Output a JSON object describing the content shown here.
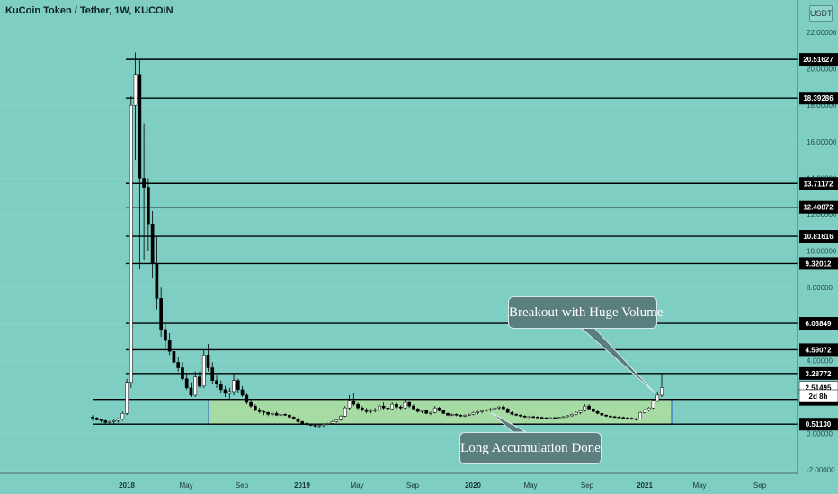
{
  "header": {
    "title": "KuCoin Token / Tether, 1W, KUCOIN",
    "currency": "USDT"
  },
  "annotations": {
    "breakout": "Breakout with Huge Volume",
    "accumulation": "Long Accumulation Done"
  },
  "chart_data": {
    "type": "candlestick",
    "title": "KuCoin Token / Tether, 1W, KUCOIN",
    "ylim": [
      -2.0,
      23.0
    ],
    "y_ticks": [
      "22.00000",
      "20.00000",
      "18.00000",
      "16.00000",
      "14.00000",
      "12.00000",
      "10.00000",
      "8.00000",
      "6.00000",
      "4.00000",
      "2.00000",
      "0.00000",
      "-2.00000"
    ],
    "x_ticks": [
      "2018",
      "May",
      "Sep",
      "2019",
      "May",
      "Sep",
      "2020",
      "May",
      "Sep",
      "2021",
      "May",
      "Sep"
    ],
    "resistance_levels": [
      {
        "value": 20.51627,
        "label": "20.51627"
      },
      {
        "value": 18.39286,
        "label": "18.39286"
      },
      {
        "value": 13.71172,
        "label": "13.71172"
      },
      {
        "value": 12.40872,
        "label": "12.40872"
      },
      {
        "value": 10.81616,
        "label": "10.81616"
      },
      {
        "value": 9.32012,
        "label": "9.32012"
      },
      {
        "value": 6.03849,
        "label": "6.03849"
      },
      {
        "value": 4.59072,
        "label": "4.59072"
      },
      {
        "value": 3.28772,
        "label": "3.28772"
      },
      {
        "value": 1.86926,
        "label": "1.86926"
      },
      {
        "value": 0.5113,
        "label": "0.51130"
      }
    ],
    "price_labels": [
      {
        "value": 2.51495,
        "label": "2.51495"
      },
      {
        "value": 2.05,
        "label": "2d 8h"
      }
    ],
    "accumulation_range": {
      "from": "2018-07",
      "to": "2021-03",
      "low": 0.5113,
      "high": 1.86926
    },
    "price_series": [
      [
        0.9,
        1.0,
        0.7,
        0.85
      ],
      [
        0.85,
        0.9,
        0.7,
        0.75
      ],
      [
        0.75,
        0.8,
        0.6,
        0.7
      ],
      [
        0.7,
        0.75,
        0.55,
        0.6
      ],
      [
        0.6,
        0.7,
        0.5,
        0.65
      ],
      [
        0.65,
        0.8,
        0.55,
        0.7
      ],
      [
        0.7,
        0.85,
        0.6,
        0.8
      ],
      [
        0.8,
        1.2,
        0.7,
        1.1
      ],
      [
        1.1,
        3.0,
        1.0,
        2.8
      ],
      [
        2.8,
        18.5,
        2.5,
        18.0
      ],
      [
        18.0,
        20.9,
        15.0,
        19.7
      ],
      [
        19.7,
        20.5,
        9.0,
        14.0
      ],
      [
        14.0,
        17.0,
        9.5,
        13.5
      ],
      [
        13.5,
        14.0,
        10.0,
        11.5
      ],
      [
        11.5,
        12.2,
        8.5,
        9.3
      ],
      [
        9.3,
        10.8,
        6.8,
        7.4
      ],
      [
        7.4,
        8.0,
        5.3,
        5.7
      ],
      [
        5.7,
        6.0,
        4.6,
        5.1
      ],
      [
        5.1,
        5.5,
        4.3,
        4.5
      ],
      [
        4.5,
        4.9,
        3.7,
        3.9
      ],
      [
        3.9,
        4.2,
        3.4,
        3.6
      ],
      [
        3.6,
        3.9,
        2.9,
        3.0
      ],
      [
        3.0,
        3.3,
        2.4,
        2.5
      ],
      [
        2.5,
        2.8,
        2.0,
        2.1
      ],
      [
        2.1,
        3.4,
        2.0,
        3.1
      ],
      [
        3.1,
        3.4,
        2.5,
        2.6
      ],
      [
        2.6,
        4.6,
        2.5,
        4.3
      ],
      [
        4.3,
        4.9,
        3.4,
        3.6
      ],
      [
        3.6,
        3.9,
        2.7,
        2.9
      ],
      [
        2.9,
        3.2,
        2.5,
        2.7
      ],
      [
        2.7,
        2.9,
        2.2,
        2.4
      ],
      [
        2.4,
        2.6,
        2.0,
        2.2
      ],
      [
        2.2,
        2.5,
        1.9,
        2.3
      ],
      [
        2.3,
        3.3,
        2.1,
        2.9
      ],
      [
        2.9,
        3.0,
        2.2,
        2.4
      ],
      [
        2.4,
        2.6,
        2.0,
        2.1
      ],
      [
        2.1,
        2.2,
        1.6,
        1.7
      ],
      [
        1.7,
        1.9,
        1.4,
        1.5
      ],
      [
        1.5,
        1.6,
        1.2,
        1.3
      ],
      [
        1.3,
        1.4,
        1.1,
        1.2
      ],
      [
        1.2,
        1.3,
        1.0,
        1.15
      ],
      [
        1.15,
        1.2,
        0.95,
        1.05
      ],
      [
        1.05,
        1.15,
        0.95,
        1.1
      ],
      [
        1.1,
        1.2,
        0.95,
        1.0
      ],
      [
        1.0,
        1.1,
        0.9,
        1.05
      ],
      [
        1.05,
        1.1,
        0.95,
        1.0
      ],
      [
        1.0,
        1.05,
        0.85,
        0.9
      ],
      [
        0.9,
        0.95,
        0.75,
        0.8
      ],
      [
        0.8,
        0.85,
        0.6,
        0.65
      ],
      [
        0.65,
        0.7,
        0.5,
        0.55
      ],
      [
        0.55,
        0.6,
        0.45,
        0.5
      ],
      [
        0.5,
        0.55,
        0.4,
        0.45
      ],
      [
        0.45,
        0.5,
        0.35,
        0.4
      ],
      [
        0.4,
        0.5,
        0.3,
        0.45
      ],
      [
        0.45,
        0.55,
        0.35,
        0.5
      ],
      [
        0.5,
        0.6,
        0.45,
        0.55
      ],
      [
        0.55,
        0.7,
        0.5,
        0.65
      ],
      [
        0.65,
        0.8,
        0.6,
        0.75
      ],
      [
        0.75,
        1.0,
        0.7,
        0.95
      ],
      [
        0.95,
        1.5,
        0.9,
        1.4
      ],
      [
        1.4,
        2.1,
        1.3,
        1.8
      ],
      [
        1.8,
        2.2,
        1.5,
        1.6
      ],
      [
        1.6,
        1.7,
        1.3,
        1.4
      ],
      [
        1.4,
        1.5,
        1.2,
        1.3
      ],
      [
        1.3,
        1.4,
        1.1,
        1.2
      ],
      [
        1.2,
        1.35,
        1.1,
        1.25
      ],
      [
        1.25,
        1.4,
        1.15,
        1.3
      ],
      [
        1.3,
        1.6,
        1.2,
        1.5
      ],
      [
        1.5,
        1.7,
        1.3,
        1.4
      ],
      [
        1.4,
        1.5,
        1.25,
        1.35
      ],
      [
        1.35,
        1.7,
        1.3,
        1.6
      ],
      [
        1.6,
        1.7,
        1.35,
        1.45
      ],
      [
        1.45,
        1.55,
        1.3,
        1.4
      ],
      [
        1.4,
        1.9,
        1.35,
        1.7
      ],
      [
        1.7,
        1.75,
        1.4,
        1.5
      ],
      [
        1.5,
        1.6,
        1.3,
        1.35
      ],
      [
        1.35,
        1.4,
        1.15,
        1.2
      ],
      [
        1.2,
        1.3,
        1.1,
        1.25
      ],
      [
        1.25,
        1.3,
        1.05,
        1.1
      ],
      [
        1.1,
        1.2,
        1.0,
        1.15
      ],
      [
        1.15,
        1.5,
        1.1,
        1.4
      ],
      [
        1.4,
        1.45,
        1.2,
        1.25
      ],
      [
        1.25,
        1.3,
        1.05,
        1.1
      ],
      [
        1.1,
        1.15,
        0.95,
        1.0
      ],
      [
        1.0,
        1.1,
        0.95,
        1.05
      ],
      [
        1.05,
        1.1,
        0.95,
        1.0
      ],
      [
        1.0,
        1.05,
        0.9,
        0.95
      ],
      [
        0.95,
        1.05,
        0.9,
        1.0
      ],
      [
        1.0,
        1.1,
        0.95,
        1.05
      ],
      [
        1.05,
        1.2,
        1.0,
        1.15
      ],
      [
        1.15,
        1.25,
        1.05,
        1.2
      ],
      [
        1.2,
        1.3,
        1.1,
        1.25
      ],
      [
        1.25,
        1.35,
        1.15,
        1.3
      ],
      [
        1.3,
        1.4,
        1.2,
        1.35
      ],
      [
        1.35,
        1.45,
        1.25,
        1.4
      ],
      [
        1.4,
        1.5,
        1.3,
        1.45
      ],
      [
        1.45,
        1.55,
        1.3,
        1.35
      ],
      [
        1.35,
        1.4,
        1.1,
        1.15
      ],
      [
        1.15,
        1.2,
        1.0,
        1.05
      ],
      [
        1.05,
        1.1,
        0.95,
        1.0
      ],
      [
        1.0,
        1.05,
        0.9,
        0.95
      ],
      [
        0.95,
        1.0,
        0.85,
        0.9
      ],
      [
        0.9,
        0.95,
        0.85,
        0.92
      ],
      [
        0.92,
        0.98,
        0.85,
        0.9
      ],
      [
        0.9,
        0.95,
        0.85,
        0.88
      ],
      [
        0.88,
        0.93,
        0.82,
        0.86
      ],
      [
        0.86,
        0.9,
        0.8,
        0.84
      ],
      [
        0.84,
        0.9,
        0.8,
        0.86
      ],
      [
        0.86,
        0.92,
        0.8,
        0.85
      ],
      [
        0.85,
        0.9,
        0.8,
        0.88
      ],
      [
        0.88,
        0.95,
        0.85,
        0.92
      ],
      [
        0.92,
        1.0,
        0.88,
        0.97
      ],
      [
        0.97,
        1.1,
        0.92,
        1.05
      ],
      [
        1.05,
        1.2,
        1.0,
        1.15
      ],
      [
        1.15,
        1.3,
        1.05,
        1.25
      ],
      [
        1.25,
        1.6,
        1.2,
        1.5
      ],
      [
        1.5,
        1.6,
        1.3,
        1.35
      ],
      [
        1.35,
        1.4,
        1.15,
        1.2
      ],
      [
        1.2,
        1.3,
        1.05,
        1.1
      ],
      [
        1.1,
        1.15,
        0.95,
        1.0
      ],
      [
        1.0,
        1.05,
        0.9,
        0.95
      ],
      [
        0.95,
        1.0,
        0.88,
        0.92
      ],
      [
        0.92,
        0.97,
        0.86,
        0.9
      ],
      [
        0.9,
        0.95,
        0.85,
        0.88
      ],
      [
        0.88,
        0.93,
        0.82,
        0.86
      ],
      [
        0.86,
        0.9,
        0.8,
        0.84
      ],
      [
        0.84,
        0.88,
        0.75,
        0.78
      ],
      [
        0.78,
        0.85,
        0.7,
        0.8
      ],
      [
        0.8,
        1.2,
        0.78,
        1.15
      ],
      [
        1.15,
        1.35,
        1.1,
        1.3
      ],
      [
        1.3,
        1.45,
        1.2,
        1.4
      ],
      [
        1.4,
        1.9,
        1.35,
        1.8
      ],
      [
        1.8,
        2.3,
        1.7,
        2.1
      ],
      [
        2.1,
        3.3,
        2.0,
        2.51495
      ]
    ]
  }
}
